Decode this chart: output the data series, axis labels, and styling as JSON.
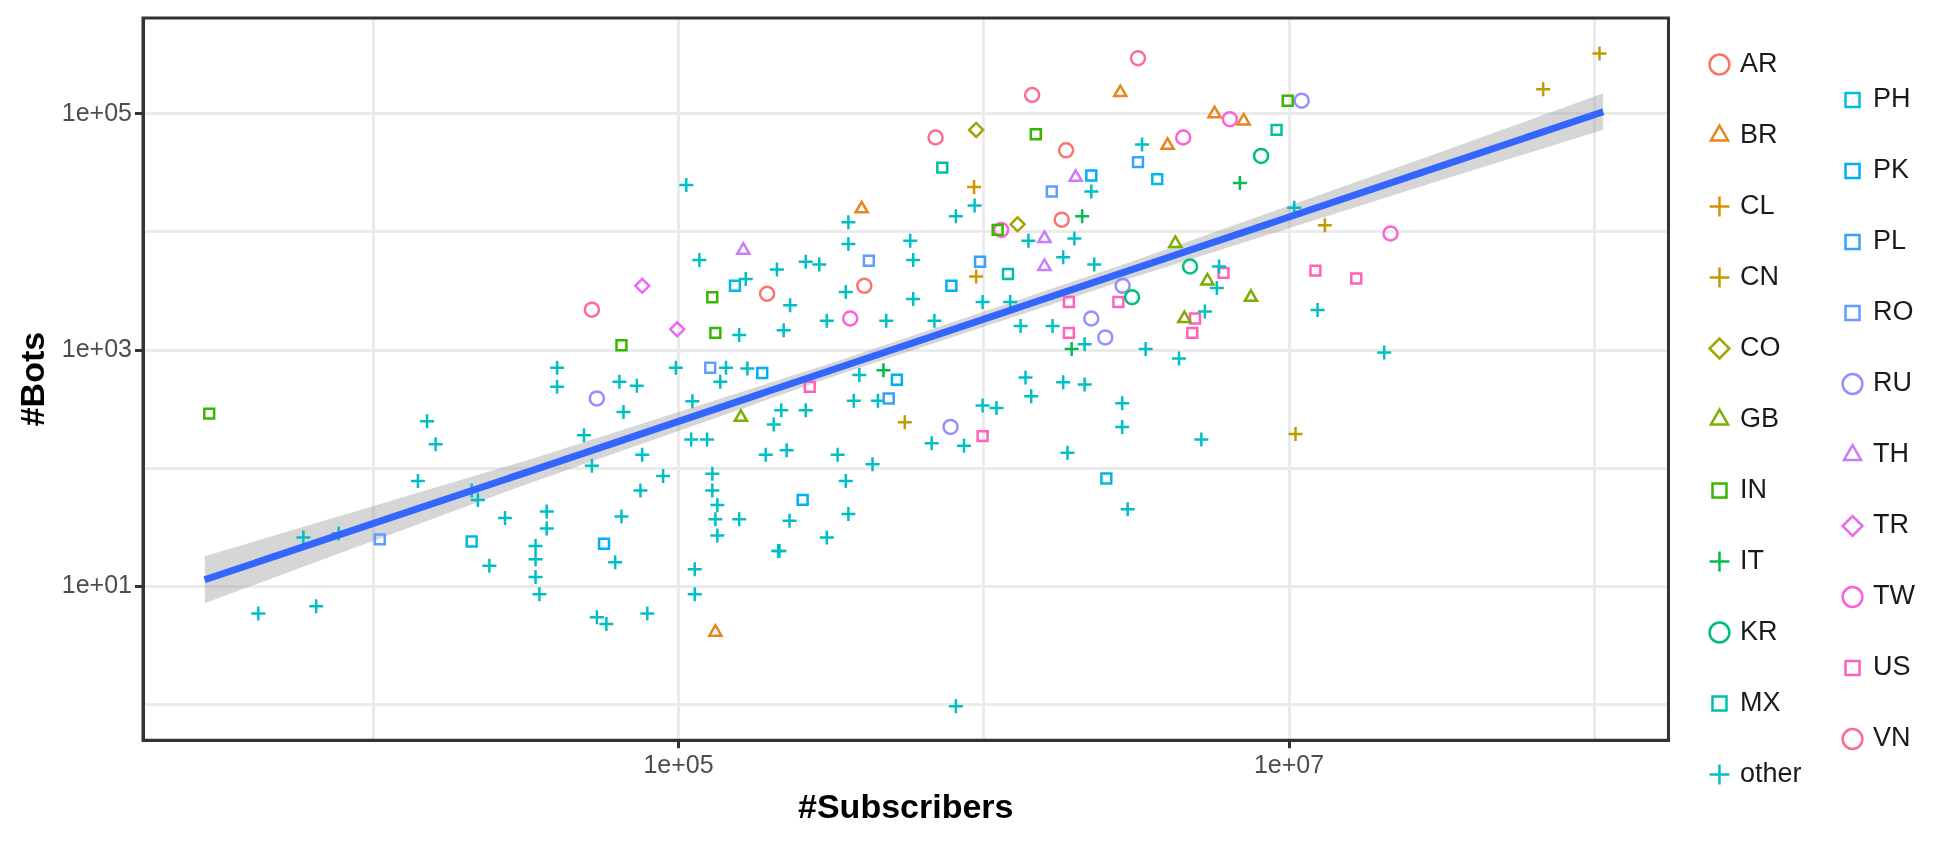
{
  "chart_data": {
    "type": "scatter",
    "xlabel": "#Subscribers",
    "ylabel": "#Bots",
    "log": "xy",
    "grid": true,
    "legend": "right",
    "xlim": [
      1760,
      175000000
    ],
    "ylim": [
      0.5,
      646000
    ],
    "xticks": [
      {
        "value": 10000,
        "label": null
      },
      {
        "value": 100000,
        "label": "1e+05"
      },
      {
        "value": 1000000,
        "label": null
      },
      {
        "value": 10000000,
        "label": "1e+07"
      },
      {
        "value": 100000000,
        "label": null
      }
    ],
    "yticks": [
      {
        "value": 1,
        "label": null
      },
      {
        "value": 10,
        "label": "1e+01"
      },
      {
        "value": 100,
        "label": null
      },
      {
        "value": 1000,
        "label": "1e+03"
      },
      {
        "value": 10000,
        "label": null
      },
      {
        "value": 100000,
        "label": "1e+05"
      }
    ],
    "series": [
      {
        "type": "line",
        "color": "#3366ff",
        "marker": "none",
        "x": [
          2800,
          31600,
          316000,
          3160000,
          31600000,
          107000000
        ],
        "values": [
          11.4,
          92,
          675,
          4940,
          36200,
          104000
        ],
        "lower": [
          7.2,
          73,
          588,
          4200,
          27500,
          73100
        ],
        "upper": [
          18,
          116,
          774,
          5800,
          47800,
          149000
        ]
      },
      {
        "name": "AR",
        "color": "#f8766d",
        "marker": "circle",
        "x": [
          195000,
          1860000,
          406000,
          1800000
        ],
        "values": [
          3000,
          49000,
          3500,
          12700
        ]
      },
      {
        "name": "BR",
        "color": "#e7851e",
        "marker": "triangle",
        "x": [
          132000,
          2800000,
          5700000,
          7100000,
          4000000,
          398000
        ],
        "values": [
          4.1,
          151000,
          100000,
          87000,
          54000,
          15700
        ]
      },
      {
        "name": "CL",
        "color": "#d89000",
        "marker": "cross",
        "x": [
          929000,
          944000
        ],
        "values": [
          24000,
          4200
        ]
      },
      {
        "name": "CN",
        "color": "#c09b00",
        "marker": "cross",
        "x": [
          13100000,
          10500000,
          551000,
          68000000,
          104000000
        ],
        "values": [
          11400,
          195,
          245,
          161000,
          324000
        ]
      },
      {
        "name": "CO",
        "color": "#a3a500",
        "marker": "diamond",
        "x": [
          944000,
          1290000
        ],
        "values": [
          73000,
          11600
        ]
      },
      {
        "name": "GB",
        "color": "#7cae00",
        "marker": "triangle",
        "x": [
          160000,
          4240000,
          5400000,
          7500000,
          4540000
        ],
        "values": [
          270,
          8000,
          3850,
          2800,
          1850
        ]
      },
      {
        "name": "IN",
        "color": "#39b600",
        "marker": "square",
        "x": [
          2900,
          65000,
          129000,
          132000,
          9900000,
          1480000,
          1110000
        ],
        "values": [
          290,
          1100,
          2800,
          1400,
          129000,
          67000,
          10400
        ]
      },
      {
        "name": "IT",
        "color": "#00bb4e",
        "marker": "cross",
        "x": [
          6900000,
          2100000,
          1940000,
          469000
        ],
        "values": [
          26000,
          13600,
          1020,
          675
        ]
      },
      {
        "name": "KR",
        "color": "#00bf7d",
        "marker": "circle",
        "x": [
          8100000,
          4740000,
          3060000
        ],
        "values": [
          44000,
          5100,
          2800
        ]
      },
      {
        "name": "MX",
        "color": "#00c1a3",
        "marker": "square",
        "x": [
          9100000,
          731000,
          1200000
        ],
        "values": [
          73000,
          35000,
          4400
        ]
      },
      {
        "name": "other",
        "color": "#00bfc4",
        "marker": "cross",
        "x": [
          4200,
          6500,
          5900,
          7700,
          24000,
          15000,
          16000,
          14000,
          21000,
          22000,
          27000,
          37000,
          37000,
          34000,
          34000,
          34000,
          35000,
          40000,
          40000,
          49000,
          52000,
          66000,
          64000,
          73000,
          76000,
          75000,
          89000,
          65000,
          62000,
          54000,
          58000,
          79000,
          106000,
          117000,
          166000,
          210000,
          158000,
          98000,
          143000,
          168000,
          137000,
          111000,
          205000,
          110000,
          124000,
          193000,
          129000,
          129000,
          134000,
          132000,
          158000,
          134000,
          214000,
          113000,
          113000,
          3300000,
          933000,
          810000,
          2250000,
          1400000,
          1980000,
          1820000,
          360000,
          360000,
          574000,
          587000,
          261000,
          289000,
          2300000,
          587000,
          232000,
          353000,
          221000,
          306000,
          479000,
          689000,
          991000,
          1220000,
          1320000,
          1680000,
          2140000,
          3390000,
          4360000,
          12400000,
          20500000,
          10400000,
          5900000,
          5800000,
          5300000,
          217000,
          261000,
          375000,
          450000,
          391000,
          675000,
          861000,
          991000,
          1100000,
          1430000,
          1370000,
          1820000,
          2140000,
          2840000,
          2840000,
          1880000,
          5160000,
          2960000,
          332000,
          432000,
          353000,
          360000,
          231000,
          306000,
          212000,
          810000,
          226000
        ],
        "values": [
          5.9,
          6.8,
          26,
          28,
          15,
          250,
          160,
          78,
          65,
          54,
          38,
          43,
          31,
          22,
          17,
          12,
          8.6,
          710,
          490,
          190,
          105,
          300,
          540,
          500,
          130,
          65,
          86,
          39,
          16,
          5.5,
          4.8,
          5.9,
          25000,
          5800,
          4000,
          4800,
          1340,
          710,
          710,
          700,
          540,
          370,
          235,
          175,
          175,
          130,
          90,
          65,
          49,
          37,
          37,
          27,
          20,
          14,
          8.6,
          55000,
          16700,
          13600,
          22000,
          8400,
          8800,
          6100,
          12100,
          7900,
          8400,
          5800,
          5600,
          5300,
          5300,
          2700,
          2400,
          3100,
          1470,
          1770,
          1770,
          1770,
          2550,
          2550,
          1600,
          1600,
          1120,
          1020,
          850,
          2180,
          955,
          16000,
          5100,
          3360,
          2120,
          309,
          309,
          372,
          372,
          615,
          163,
          155,
          339,
          324,
          407,
          587,
          535,
          512,
          355,
          224,
          135,
          175,
          45,
          130,
          108,
          78,
          41,
          36,
          26,
          20,
          0.97,
          142
        ]
      },
      {
        "name": "PH",
        "color": "#00bae0",
        "marker": "square",
        "x": [
          21000,
          153000,
          3700000,
          2520000
        ],
        "values": [
          24,
          3500,
          28000,
          82
        ]
      },
      {
        "name": "PK",
        "color": "#00b0f6",
        "marker": "square",
        "x": [
          57000,
          188000,
          2250000,
          783000,
          519000,
          255000
        ],
        "values": [
          23,
          640,
          30000,
          3500,
          561,
          54
        ]
      },
      {
        "name": "PL",
        "color": "#35a2ff",
        "marker": "square",
        "x": [
          3200000,
          972000,
          488000
        ],
        "values": [
          39000,
          5600,
          389
        ]
      },
      {
        "name": "RO",
        "color": "#619cff",
        "marker": "square",
        "x": [
          10500,
          127000,
          1670000,
          420000
        ],
        "values": [
          25,
          710,
          22000,
          5700
        ]
      },
      {
        "name": "RU",
        "color": "#9590ff",
        "marker": "circle",
        "x": [
          54000,
          11000000,
          2250000,
          2500000,
          2850000,
          778000
        ],
        "values": [
          390,
          129000,
          1850,
          1280,
          3500,
          224
        ]
      },
      {
        "name": "TH",
        "color": "#c77cff",
        "marker": "triangle",
        "x": [
          163000,
          2000000,
          1580000,
          1580000
        ],
        "values": [
          7000,
          29000,
          8800,
          5100
        ]
      },
      {
        "name": "TR",
        "color": "#e76bf3",
        "marker": "diamond",
        "x": [
          76000,
          99000
        ],
        "values": [
          3500,
          1500
        ]
      },
      {
        "name": "TW",
        "color": "#fa62db",
        "marker": "circle",
        "x": [
          6400000,
          4500000,
          1140000,
          365000,
          21500000
        ],
        "values": [
          90000,
          63000,
          10400,
          1850,
          9700
        ]
      },
      {
        "name": "US",
        "color": "#ff62bc",
        "marker": "square",
        "x": [
          1900000,
          1900000,
          16600000,
          12200000,
          6100000,
          2760000,
          4920000,
          4820000,
          269000,
          991000
        ],
        "values": [
          2550,
          1400,
          4040,
          4700,
          4500,
          2550,
          1850,
          1400,
          489,
          187
        ]
      },
      {
        "name": "VN",
        "color": "#ff6c91",
        "marker": "circle",
        "x": [
          52000,
          3200000,
          1440000,
          695000
        ],
        "values": [
          2200,
          295000,
          144000,
          63000
        ]
      }
    ]
  }
}
